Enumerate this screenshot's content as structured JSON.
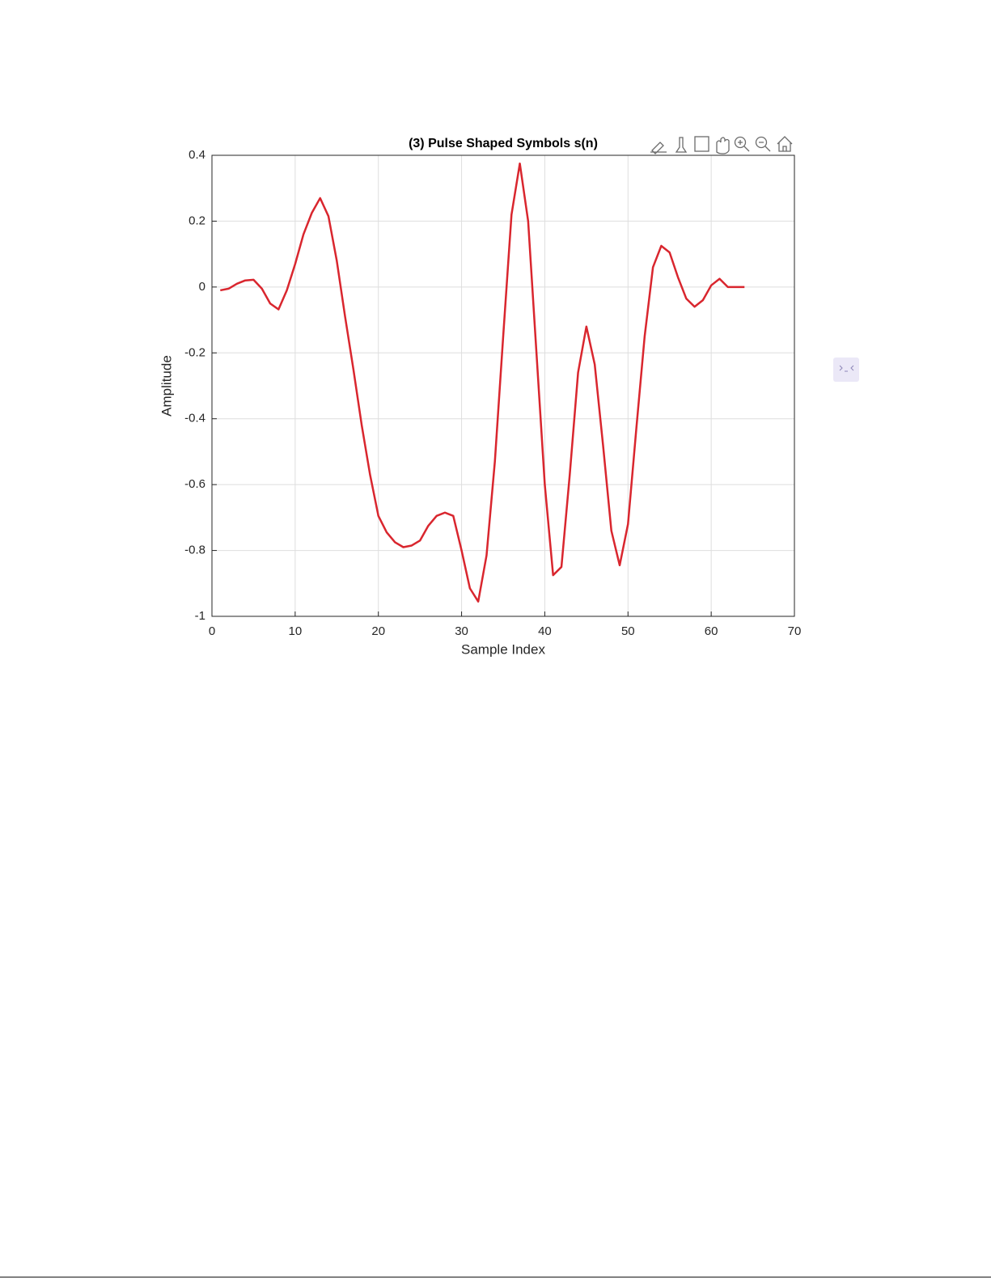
{
  "chart_data": {
    "type": "line",
    "title": "(3) Pulse Shaped Symbols s(n)",
    "x_label": "Sample Index",
    "y_label": "Amplitude",
    "x": [
      1,
      2,
      3,
      4,
      5,
      6,
      7,
      8,
      9,
      10,
      11,
      12,
      13,
      14,
      15,
      16,
      17,
      18,
      19,
      20,
      21,
      22,
      23,
      24,
      25,
      26,
      27,
      28,
      29,
      30,
      31,
      32,
      33,
      34,
      35,
      36,
      37,
      38,
      39,
      40,
      41,
      42,
      43,
      44,
      45,
      46,
      47,
      48,
      49,
      50,
      51,
      52,
      53,
      54,
      55,
      56,
      57,
      58,
      59,
      60,
      61,
      62,
      63,
      64
    ],
    "series": [
      {
        "color": "#d9262e",
        "values": [
          -0.01,
          -0.005,
          0.01,
          0.02,
          0.022,
          -0.005,
          -0.05,
          -0.068,
          -0.01,
          0.07,
          0.16,
          0.225,
          0.27,
          0.215,
          0.08,
          -0.09,
          -0.25,
          -0.42,
          -0.57,
          -0.695,
          -0.745,
          -0.775,
          -0.79,
          -0.785,
          -0.77,
          -0.725,
          -0.695,
          -0.685,
          -0.695,
          -0.8,
          -0.915,
          -0.955,
          -0.815,
          -0.53,
          -0.15,
          0.22,
          0.375,
          0.2,
          -0.2,
          -0.6,
          -0.875,
          -0.85,
          -0.57,
          -0.26,
          -0.12,
          -0.235,
          -0.48,
          -0.74,
          -0.845,
          -0.72,
          -0.43,
          -0.15,
          0.06,
          0.125,
          0.105,
          0.03,
          -0.035,
          -0.06,
          -0.04,
          0.005,
          0.025,
          0,
          0,
          0
        ]
      }
    ],
    "xlim": [
      0,
      70
    ],
    "xticks": [
      0,
      10,
      20,
      30,
      40,
      50,
      60,
      70
    ],
    "ylim": [
      -1,
      0.4
    ],
    "yticks": [
      -1,
      -0.8,
      -0.6,
      -0.4,
      -0.2,
      0,
      0.2,
      0.4
    ],
    "grid": true
  }
}
